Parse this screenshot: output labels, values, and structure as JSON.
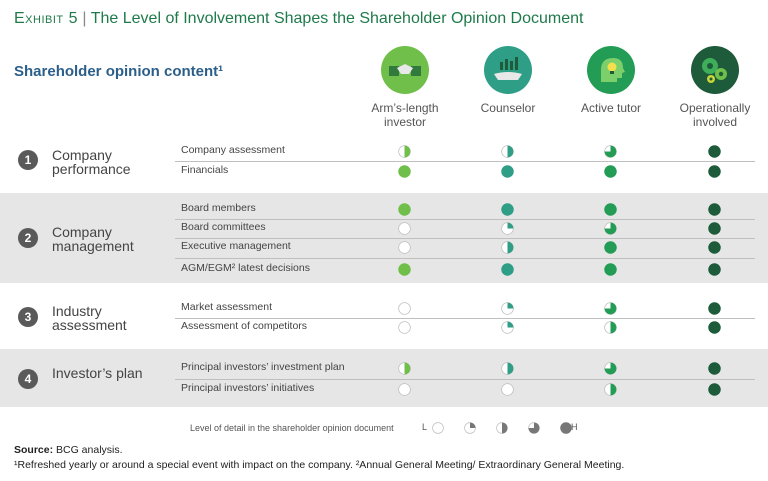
{
  "title": {
    "exhibit": "Exhibit 5",
    "sep": "|",
    "text": "The Level of Involvement Shapes the Shareholder Opinion Document"
  },
  "subtitle": "Shareholder opinion content¹",
  "columns": [
    {
      "label": "Arm’s-length investor",
      "icon": "handshake-icon",
      "color": "#6fbf4a"
    },
    {
      "label": "Counselor",
      "icon": "hand-growth-icon",
      "color": "#2e9e86"
    },
    {
      "label": "Active tutor",
      "icon": "lightbulb-head-icon",
      "color": "#239c55"
    },
    {
      "label": "Operationally involved",
      "icon": "gears-icon",
      "color": "#1d5b3a"
    }
  ],
  "groups": [
    {
      "number": "1",
      "label": "Company performance",
      "rows": [
        {
          "label": "Company assessment",
          "levels": [
            0.5,
            0.5,
            0.75,
            1
          ]
        },
        {
          "label": "Financials",
          "levels": [
            1,
            1,
            1,
            1
          ]
        }
      ]
    },
    {
      "number": "2",
      "label": "Company management",
      "rows": [
        {
          "label": "Board members",
          "levels": [
            1,
            1,
            1,
            1
          ]
        },
        {
          "label": "Board committees",
          "levels": [
            0,
            0.25,
            0.75,
            1
          ]
        },
        {
          "label": "Executive management",
          "levels": [
            0,
            0.5,
            1,
            1
          ]
        },
        {
          "label": "AGM/EGM² latest decisions",
          "levels": [
            1,
            1,
            1,
            1
          ]
        }
      ]
    },
    {
      "number": "3",
      "label": "Industry assessment",
      "rows": [
        {
          "label": "Market assessment",
          "levels": [
            0,
            0.25,
            0.75,
            1
          ]
        },
        {
          "label": "Assessment of competitors",
          "levels": [
            0,
            0.25,
            0.5,
            1
          ]
        }
      ]
    },
    {
      "number": "4",
      "label": "Investor’s plan",
      "rows": [
        {
          "label": "Principal investors’ investment plan",
          "levels": [
            0.5,
            0.5,
            0.75,
            1
          ]
        },
        {
          "label": "Principal investors’ initiatives",
          "levels": [
            0,
            0,
            0.5,
            1
          ]
        }
      ]
    }
  ],
  "legend": {
    "text": "Level of detail in the shareholder opinion document",
    "low": "L",
    "high": "H",
    "levels": [
      0,
      0.25,
      0.5,
      0.75,
      1
    ],
    "color": "#777777"
  },
  "source_label": "Source:",
  "source_text": " BCG analysis.",
  "footnote": "¹Refreshed yearly or around a special event with impact on the company. ²Annual General Meeting/ Extraordinary General Meeting."
}
